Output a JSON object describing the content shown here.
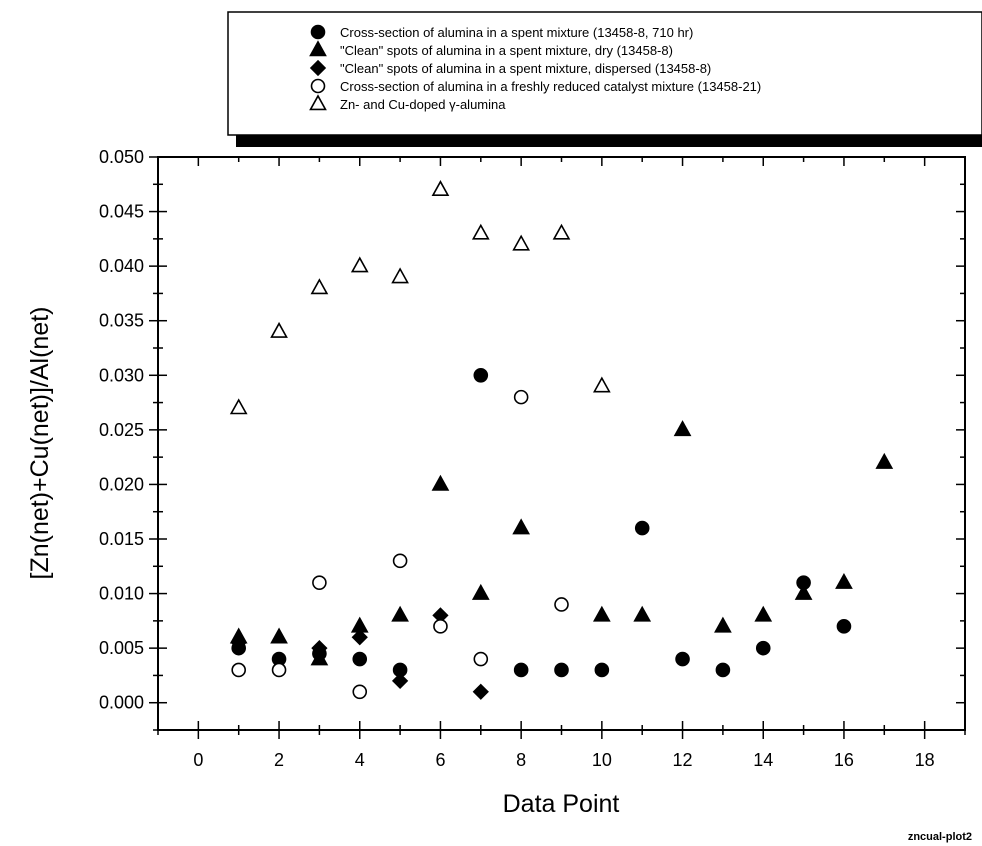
{
  "chart_data": {
    "type": "scatter",
    "xlabel": "Data Point",
    "ylabel": "[Zn(net)+Cu(net)]/Al(net)",
    "xlim": [
      -1,
      19
    ],
    "ylim": [
      -0.0025,
      0.05
    ],
    "x_ticks": [
      0,
      2,
      4,
      6,
      8,
      10,
      12,
      14,
      16,
      18
    ],
    "y_ticks": [
      0.0,
      0.005,
      0.01,
      0.015,
      0.02,
      0.025,
      0.03,
      0.035,
      0.04,
      0.045,
      0.05
    ],
    "y_tick_labels": [
      "0.000",
      "0.005",
      "0.010",
      "0.015",
      "0.020",
      "0.025",
      "0.030",
      "0.035",
      "0.040",
      "0.045",
      "0.050"
    ],
    "grid": false,
    "legend_position": "top",
    "footnote": "zncual-plot2",
    "series": [
      {
        "name": "Cross-section of alumina in a spent mixture (13458-8, 710 hr)",
        "marker": "filled-circle",
        "x": [
          1,
          2,
          3,
          4,
          5,
          7,
          8,
          9,
          10,
          11,
          12,
          13,
          14,
          15,
          16
        ],
        "y": [
          0.005,
          0.004,
          0.0045,
          0.004,
          0.003,
          0.03,
          0.003,
          0.003,
          0.003,
          0.016,
          0.004,
          0.003,
          0.005,
          0.011,
          0.007
        ]
      },
      {
        "name": "\"Clean\" spots of alumina in a spent mixture, dry (13458-8)",
        "marker": "filled-triangle",
        "x": [
          1,
          2,
          3,
          4,
          5,
          6,
          7,
          8,
          10,
          11,
          12,
          13,
          14,
          15,
          16,
          17
        ],
        "y": [
          0.006,
          0.006,
          0.004,
          0.007,
          0.008,
          0.02,
          0.01,
          0.016,
          0.008,
          0.008,
          0.025,
          0.007,
          0.008,
          0.01,
          0.011,
          0.022
        ]
      },
      {
        "name": "\"Clean\" spots of alumina in a spent mixture, dispersed (13458-8)",
        "marker": "filled-diamond",
        "x": [
          1,
          3,
          4,
          5,
          6,
          7
        ],
        "y": [
          0.0055,
          0.005,
          0.006,
          0.002,
          0.008,
          0.001
        ]
      },
      {
        "name": "Cross-section of alumina in a freshly reduced catalyst mixture (13458-21)",
        "marker": "open-circle",
        "x": [
          1,
          2,
          3,
          4,
          5,
          6,
          7,
          8,
          9
        ],
        "y": [
          0.003,
          0.003,
          0.011,
          0.001,
          0.013,
          0.007,
          0.004,
          0.028,
          0.009
        ]
      },
      {
        "name": "Zn- and Cu-doped γ-alumina",
        "marker": "open-triangle",
        "x": [
          1,
          2,
          3,
          4,
          5,
          6,
          7,
          8,
          9,
          10
        ],
        "y": [
          0.027,
          0.034,
          0.038,
          0.04,
          0.039,
          0.047,
          0.043,
          0.042,
          0.043,
          0.029
        ]
      }
    ]
  }
}
